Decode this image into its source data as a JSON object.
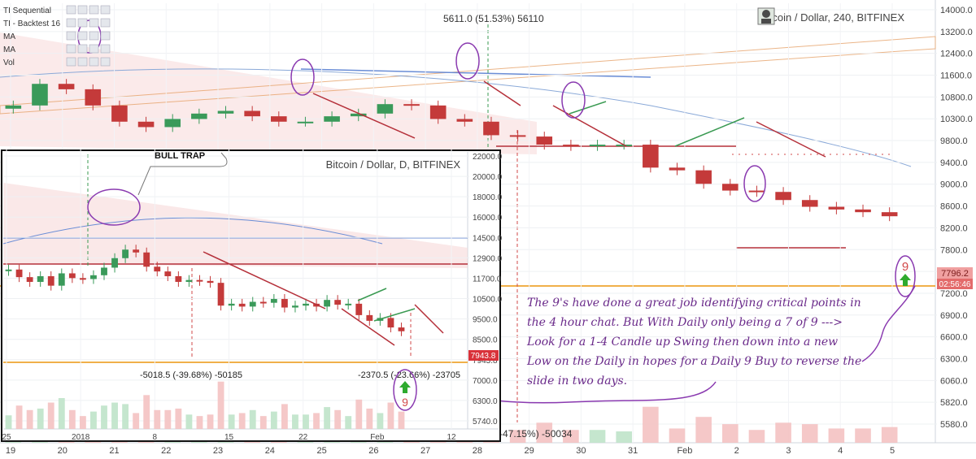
{
  "main": {
    "title": "Bitcoin / Dollar, 240, BITFINEX",
    "indicators": [
      "TI Sequential",
      "TI - Backtest 16",
      "MA",
      "MA",
      "Vol"
    ],
    "top_label": "5611.0 (51.53%) 56110",
    "bottom_label": "-47.15%) -50034",
    "price_tag": "7796.2",
    "countdown": "02:56:46",
    "annotation_lines": [
      "The 9's have done a great job identifying critical points in",
      "the 4 hour chat. But With Daily only being a 7 of 9 --->",
      "Look for a 1-4 Candle up Swing then down into a new",
      "Low on the Daily in hopes for a Daily 9 Buy to reverse the",
      "slide in two days."
    ],
    "setup_label": "9"
  },
  "inset": {
    "title": "Bitcoin / Dollar, D, BITFINEX",
    "callout": "BULL TRAP",
    "left_label": "-5018.5 (-39.68%) -50185",
    "right_label": "-2370.5 (-23.66%) -23705",
    "price_tag": "7943.8",
    "setup_label": "9"
  },
  "chart_data": [
    {
      "type": "line",
      "title": "Bitcoin / Dollar, 240, BITFINEX",
      "yticks": [
        "14000.0",
        "13200.0",
        "12400.0",
        "11600.0",
        "10800.0",
        "10300.0",
        "9800.0",
        "9400.0",
        "9000.0",
        "8600.0",
        "8200.0",
        "7800.0",
        "7400.0",
        "7200.0",
        "6900.0",
        "6600.0",
        "6300.0",
        "6060.0",
        "5820.0",
        "5580.0"
      ],
      "xticks": [
        "19",
        "20",
        "21",
        "22",
        "23",
        "24",
        "25",
        "26",
        "27",
        "28",
        "29",
        "30",
        "31",
        "Feb",
        "2",
        "3",
        "4",
        "5"
      ],
      "ylim": [
        5580,
        14000
      ],
      "series": [
        {
          "values": [
            11900,
            12700,
            12500,
            11900,
            11300,
            11100,
            11400,
            11600,
            11700,
            11500,
            11300,
            11300,
            11500,
            11600,
            11950,
            11900,
            11400,
            11300,
            10800,
            10750,
            10450,
            10400,
            10450,
            10450,
            9600,
            9500,
            9000,
            8750,
            8700,
            8400,
            8150,
            8050,
            7950,
            7800
          ]
        }
      ]
    },
    {
      "type": "line",
      "title": "Bitcoin / Dollar, D, BITFINEX",
      "yticks": [
        "22000.0",
        "20000.0",
        "18000.0",
        "16000.0",
        "14500.0",
        "12900.0",
        "11700.0",
        "10500.0",
        "9500.0",
        "8500.0",
        "7943.8",
        "7000.0",
        "6300.0",
        "5740.0"
      ],
      "xticks": [
        "25",
        "2018",
        "8",
        "15",
        "22",
        "Feb",
        "12"
      ],
      "ylim": [
        5740,
        22000
      ],
      "series": [
        {
          "values": [
            15000,
            14200,
            13700,
            14300,
            13300,
            14600,
            14100,
            14000,
            14400,
            15200,
            16200,
            17100,
            16800,
            15300,
            14800,
            14300,
            13700,
            13900,
            13800,
            13600,
            11200,
            11400,
            11100,
            11600,
            11500,
            11900,
            11000,
            11200,
            11400,
            11100,
            11800,
            11300,
            11400,
            10200,
            9600,
            9900,
            8900,
            8500
          ]
        }
      ]
    }
  ]
}
